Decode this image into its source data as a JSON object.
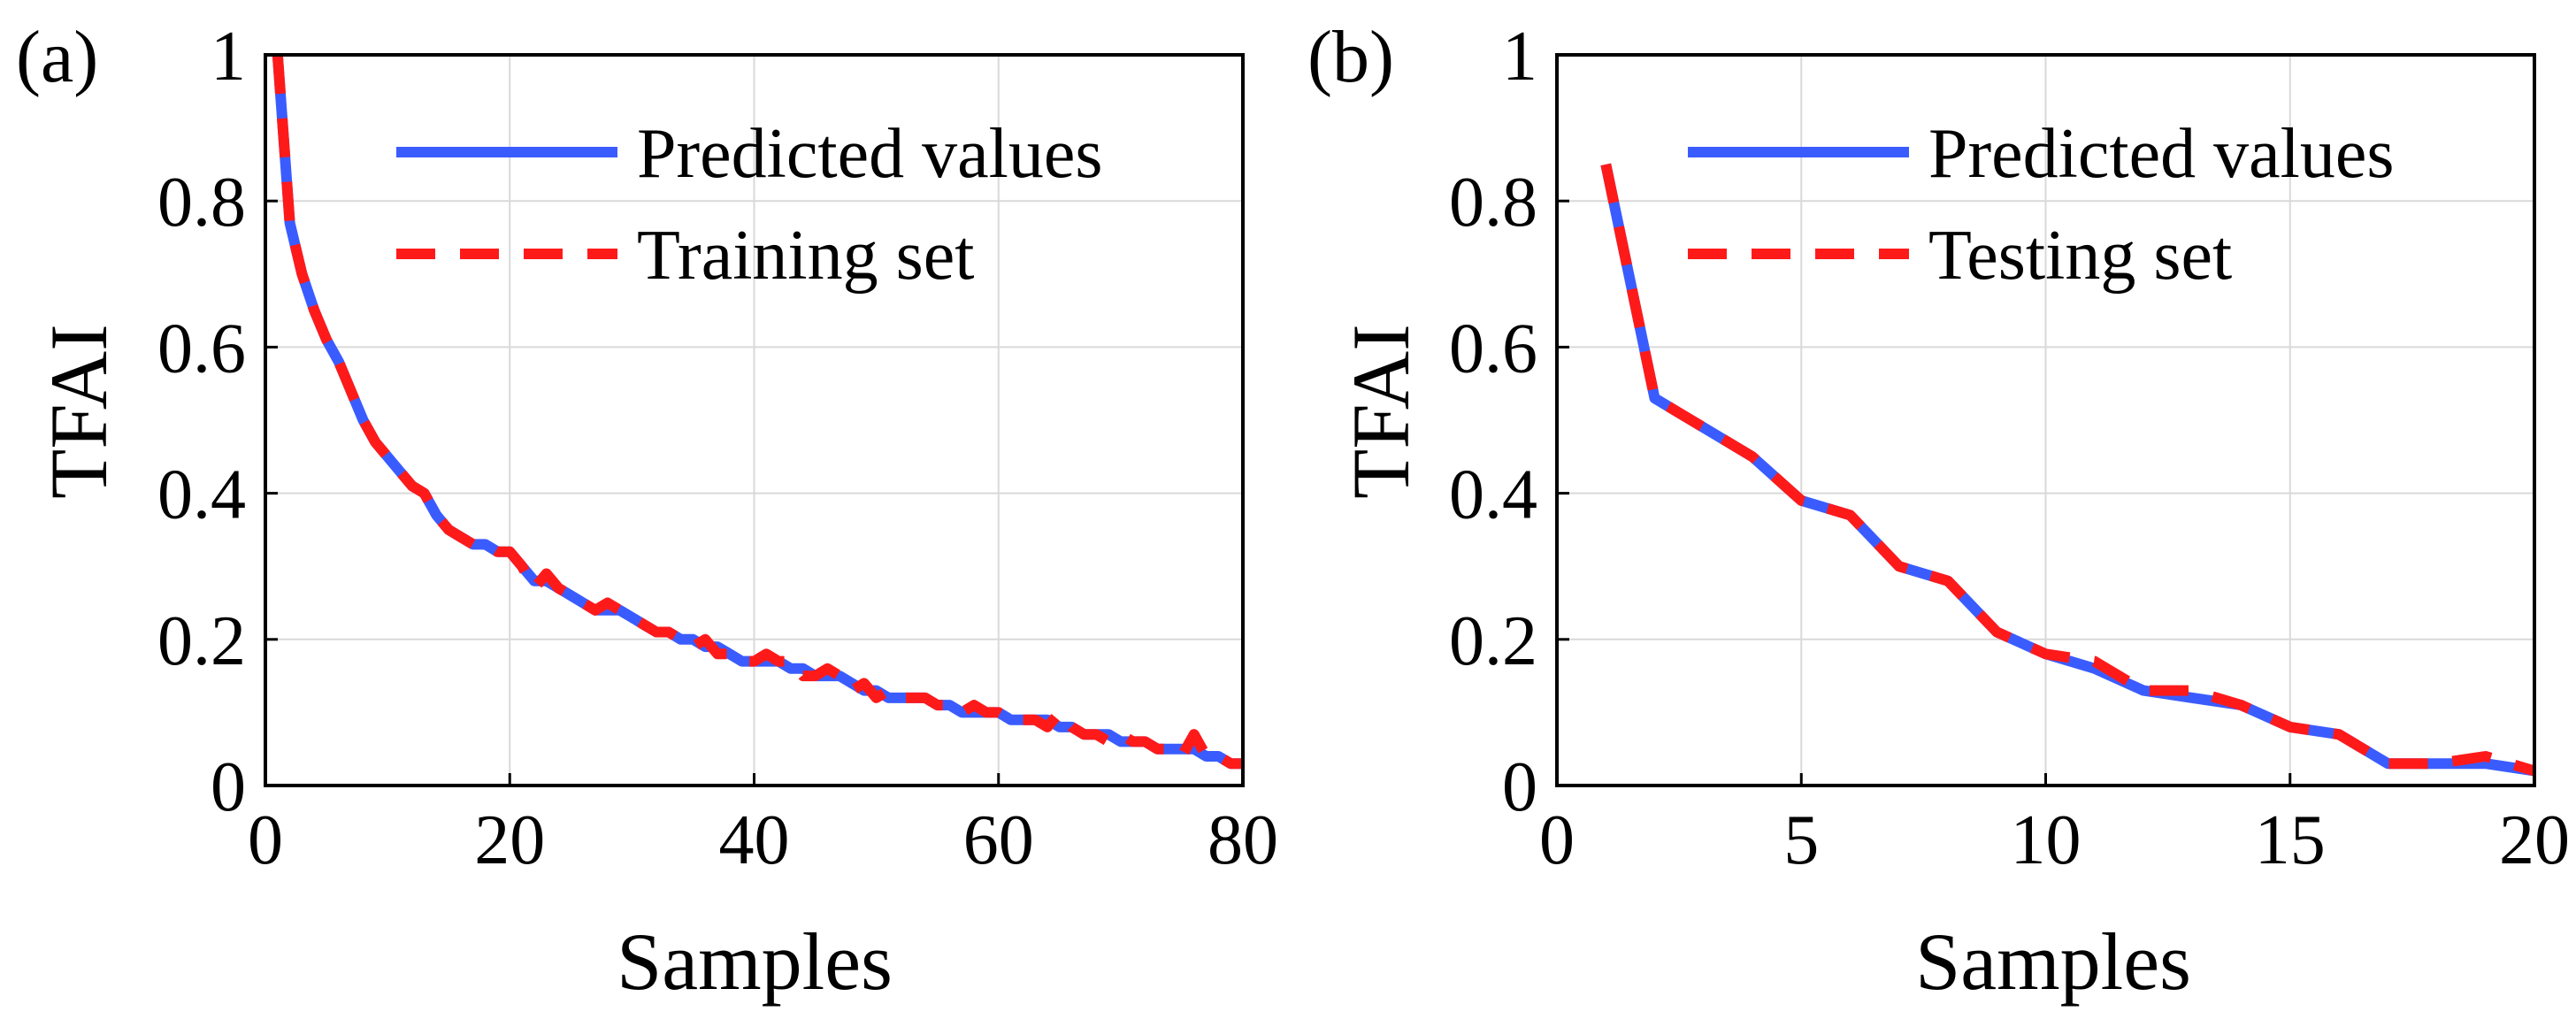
{
  "figure": {
    "background": "#ffffff",
    "grid_color": "#d9d9d9",
    "axis_color": "#000000"
  },
  "chart_data": [
    {
      "type": "line",
      "panel_label": "(a)",
      "xlabel": "Samples",
      "ylabel": "TFAI",
      "xlim": [
        0,
        80
      ],
      "ylim": [
        0,
        1
      ],
      "xticks": [
        0,
        20,
        40,
        60,
        80
      ],
      "yticks": [
        0,
        0.2,
        0.4,
        0.6,
        0.8,
        1
      ],
      "ytick_labels": [
        "0",
        "0.2",
        "0.4",
        "0.6",
        "0.8",
        "1"
      ],
      "grid": true,
      "legend_position": "top-right",
      "series": [
        {
          "name": "Predicted values",
          "color": "#3a5cff",
          "style": "solid",
          "x": [
            1,
            2,
            3,
            4,
            5,
            6,
            7,
            8,
            9,
            10,
            11,
            12,
            13,
            14,
            15,
            16,
            17,
            18,
            19,
            20,
            21,
            22,
            23,
            24,
            25,
            26,
            27,
            28,
            29,
            30,
            31,
            32,
            33,
            34,
            35,
            36,
            37,
            38,
            39,
            40,
            41,
            42,
            43,
            44,
            45,
            46,
            47,
            48,
            49,
            50,
            51,
            52,
            53,
            54,
            55,
            56,
            57,
            58,
            59,
            60,
            61,
            62,
            63,
            64,
            65,
            66,
            67,
            68,
            69,
            70,
            71,
            72,
            73,
            74,
            75,
            76,
            77,
            78,
            79,
            80
          ],
          "y": [
            1.0,
            0.77,
            0.7,
            0.65,
            0.61,
            0.58,
            0.54,
            0.5,
            0.47,
            0.45,
            0.43,
            0.41,
            0.4,
            0.37,
            0.35,
            0.34,
            0.33,
            0.33,
            0.32,
            0.32,
            0.3,
            0.28,
            0.28,
            0.27,
            0.26,
            0.25,
            0.24,
            0.24,
            0.24,
            0.23,
            0.22,
            0.21,
            0.21,
            0.2,
            0.2,
            0.19,
            0.19,
            0.18,
            0.17,
            0.17,
            0.17,
            0.17,
            0.16,
            0.16,
            0.15,
            0.15,
            0.15,
            0.14,
            0.13,
            0.13,
            0.12,
            0.12,
            0.12,
            0.12,
            0.11,
            0.11,
            0.1,
            0.1,
            0.1,
            0.1,
            0.09,
            0.09,
            0.09,
            0.09,
            0.08,
            0.08,
            0.07,
            0.07,
            0.07,
            0.06,
            0.06,
            0.06,
            0.05,
            0.05,
            0.05,
            0.05,
            0.04,
            0.04,
            0.03,
            0.03
          ]
        },
        {
          "name": "Training set",
          "color": "#ff1a1a",
          "style": "dashed",
          "x": [
            1,
            2,
            3,
            4,
            5,
            6,
            7,
            8,
            9,
            10,
            11,
            12,
            13,
            14,
            15,
            16,
            17,
            18,
            19,
            20,
            21,
            22,
            23,
            24,
            25,
            26,
            27,
            28,
            29,
            30,
            31,
            32,
            33,
            34,
            35,
            36,
            37,
            38,
            39,
            40,
            41,
            42,
            43,
            44,
            45,
            46,
            47,
            48,
            49,
            50,
            51,
            52,
            53,
            54,
            55,
            56,
            57,
            58,
            59,
            60,
            61,
            62,
            63,
            64,
            65,
            66,
            67,
            68,
            69,
            70,
            71,
            72,
            73,
            74,
            75,
            76,
            77,
            78,
            79,
            80
          ],
          "y": [
            1.0,
            0.77,
            0.7,
            0.65,
            0.61,
            0.58,
            0.54,
            0.5,
            0.47,
            0.45,
            0.43,
            0.41,
            0.4,
            0.37,
            0.35,
            0.34,
            0.33,
            0.33,
            0.32,
            0.32,
            0.3,
            0.27,
            0.29,
            0.27,
            0.26,
            0.25,
            0.24,
            0.25,
            0.24,
            0.23,
            0.22,
            0.21,
            0.21,
            0.2,
            0.19,
            0.2,
            0.18,
            0.18,
            0.17,
            0.17,
            0.18,
            0.17,
            0.17,
            0.15,
            0.15,
            0.16,
            0.15,
            0.13,
            0.14,
            0.12,
            0.13,
            0.12,
            0.12,
            0.12,
            0.11,
            0.11,
            0.1,
            0.11,
            0.1,
            0.1,
            0.09,
            0.09,
            0.09,
            0.08,
            0.1,
            0.08,
            0.07,
            0.07,
            0.06,
            0.07,
            0.06,
            0.06,
            0.05,
            0.05,
            0.04,
            0.07,
            0.04,
            0.04,
            0.03,
            0.03
          ]
        }
      ]
    },
    {
      "type": "line",
      "panel_label": "(b)",
      "xlabel": "Samples",
      "ylabel": "TFAI",
      "xlim": [
        0,
        20
      ],
      "ylim": [
        0,
        1
      ],
      "xticks": [
        0,
        5,
        10,
        15,
        20
      ],
      "yticks": [
        0,
        0.2,
        0.4,
        0.6,
        0.8,
        1
      ],
      "ytick_labels": [
        "0",
        "0.2",
        "0.4",
        "0.6",
        "0.8",
        "1"
      ],
      "grid": true,
      "legend_position": "top-right",
      "series": [
        {
          "name": "Predicted values",
          "color": "#3a5cff",
          "style": "solid",
          "x": [
            1,
            2,
            3,
            4,
            5,
            6,
            7,
            8,
            9,
            10,
            11,
            12,
            13,
            14,
            15,
            16,
            17,
            18,
            19,
            20
          ],
          "y": [
            0.85,
            0.53,
            0.49,
            0.45,
            0.39,
            0.37,
            0.3,
            0.28,
            0.21,
            0.18,
            0.16,
            0.13,
            0.12,
            0.11,
            0.08,
            0.07,
            0.03,
            0.03,
            0.03,
            0.02
          ]
        },
        {
          "name": "Testing set",
          "color": "#ff1a1a",
          "style": "dashed",
          "x": [
            1,
            2,
            3,
            4,
            5,
            6,
            7,
            8,
            9,
            10,
            11,
            12,
            13,
            14,
            15,
            16,
            17,
            18,
            19,
            20
          ],
          "y": [
            0.85,
            0.53,
            0.49,
            0.45,
            0.39,
            0.37,
            0.3,
            0.28,
            0.21,
            0.18,
            0.17,
            0.13,
            0.13,
            0.11,
            0.08,
            0.07,
            0.03,
            0.03,
            0.04,
            0.02
          ]
        }
      ]
    }
  ]
}
